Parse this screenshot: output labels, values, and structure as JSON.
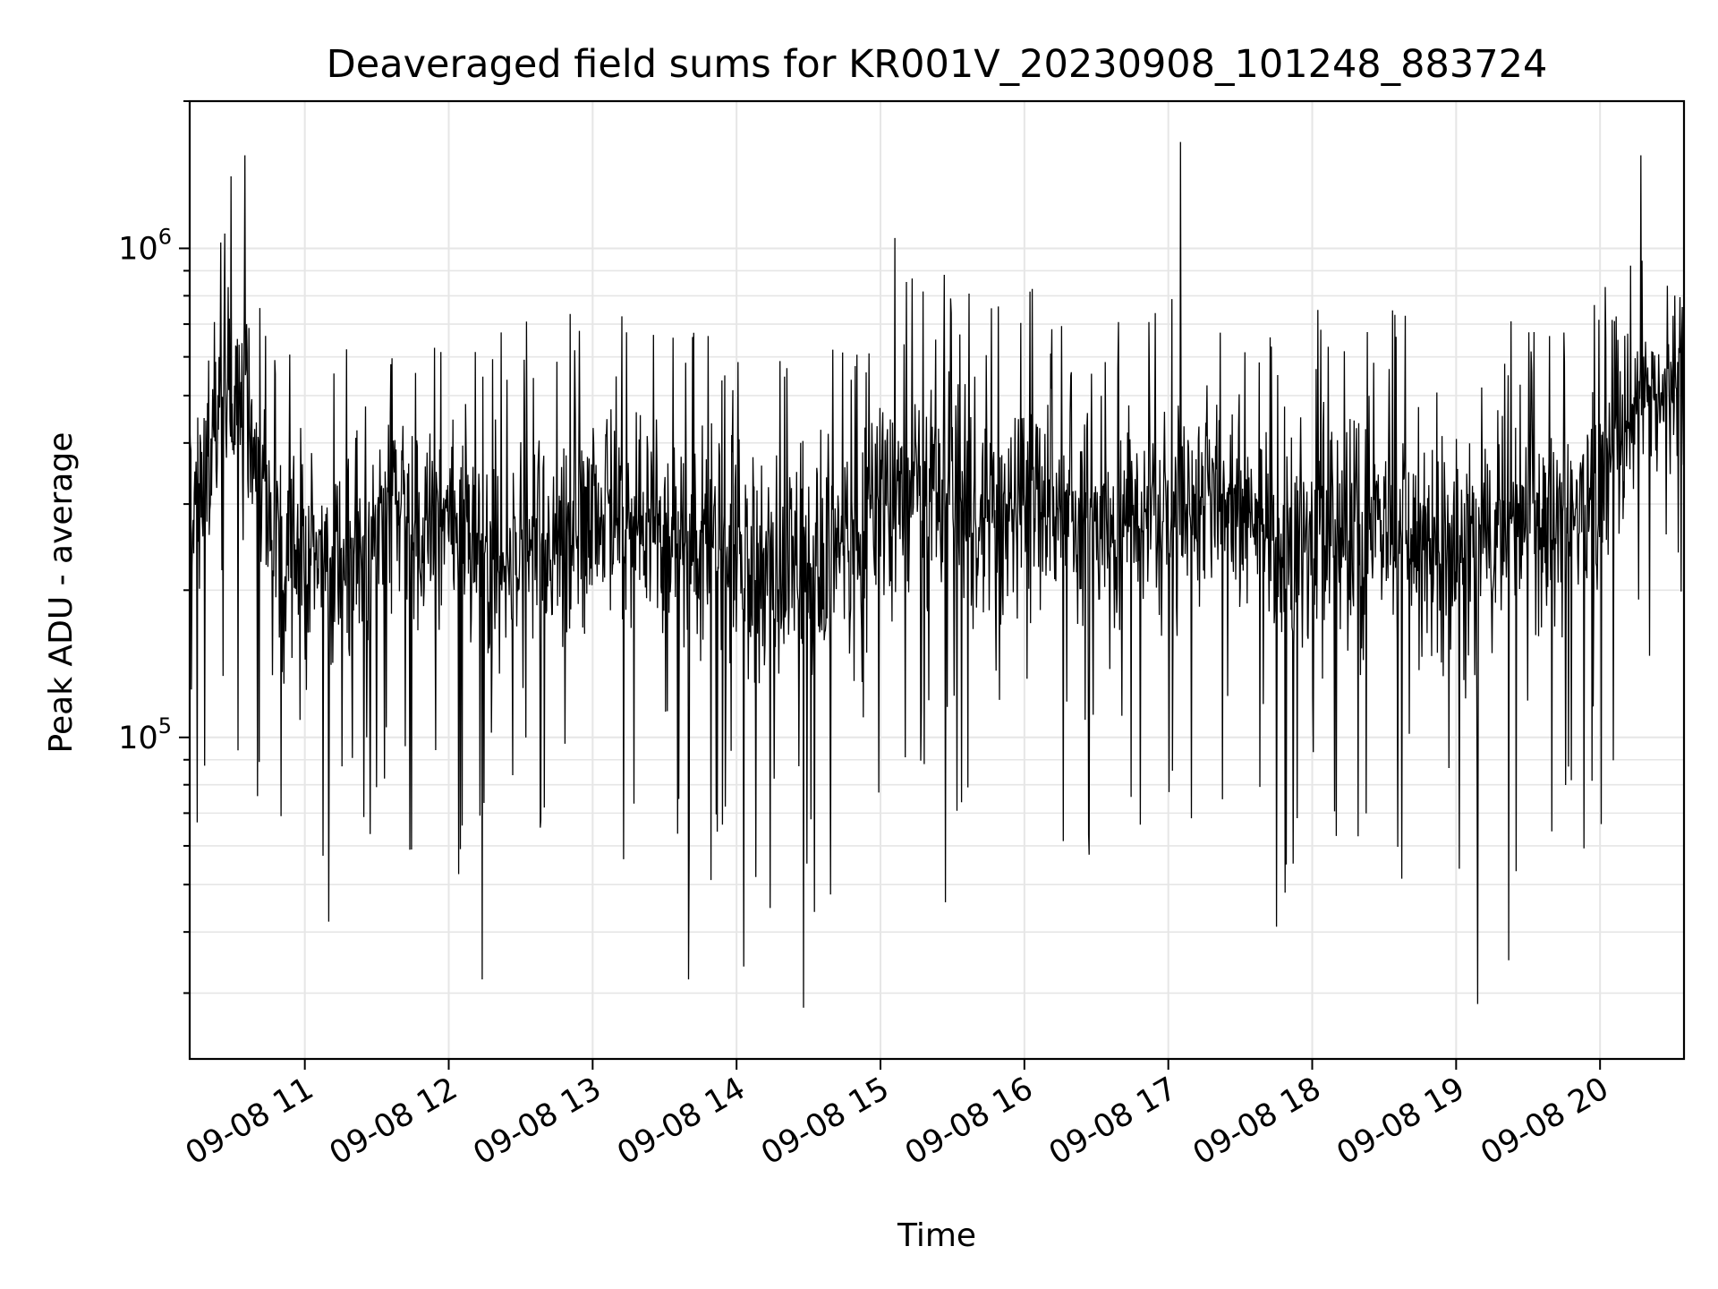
{
  "chart_data": {
    "type": "line",
    "title": "Deaveraged field sums for KR001V_20230908_101248_883724",
    "xlabel": "Time",
    "ylabel": "Peak ADU - average",
    "yscale": "log",
    "ylim": [
      22000,
      2000000
    ],
    "xlim": [
      "2023-09-08 10:12",
      "2023-09-08 20:35"
    ],
    "grid": true,
    "legend": "none",
    "colors": {
      "line": "#000000",
      "grid": "#e6e6e6",
      "frame": "#000000"
    },
    "x_ticks": [
      {
        "value": "2023-09-08 11:00",
        "label": "09-08 11"
      },
      {
        "value": "2023-09-08 12:00",
        "label": "09-08 12"
      },
      {
        "value": "2023-09-08 13:00",
        "label": "09-08 13"
      },
      {
        "value": "2023-09-08 14:00",
        "label": "09-08 14"
      },
      {
        "value": "2023-09-08 15:00",
        "label": "09-08 15"
      },
      {
        "value": "2023-09-08 16:00",
        "label": "09-08 16"
      },
      {
        "value": "2023-09-08 17:00",
        "label": "09-08 17"
      },
      {
        "value": "2023-09-08 18:00",
        "label": "09-08 18"
      },
      {
        "value": "2023-09-08 19:00",
        "label": "09-08 19"
      },
      {
        "value": "2023-09-08 20:00",
        "label": "09-08 20"
      }
    ],
    "y_ticks": [
      {
        "value": 100000,
        "base": "10",
        "exp": "5"
      },
      {
        "value": 1000000,
        "base": "10",
        "exp": "6"
      }
    ],
    "series": [
      {
        "x": [
          "2023-09-08 10:12",
          "2023-09-08 10:30",
          "2023-09-08 10:40",
          "2023-09-08 10:50",
          "2023-09-08 11:00",
          "2023-09-08 11:15",
          "2023-09-08 11:30",
          "2023-09-08 11:45",
          "2023-09-08 12:00",
          "2023-09-08 12:15",
          "2023-09-08 12:30",
          "2023-09-08 12:45",
          "2023-09-08 13:00",
          "2023-09-08 13:15",
          "2023-09-08 13:30",
          "2023-09-08 13:45",
          "2023-09-08 14:00",
          "2023-09-08 14:15",
          "2023-09-08 14:30",
          "2023-09-08 14:45",
          "2023-09-08 15:00",
          "2023-09-08 15:15",
          "2023-09-08 15:30",
          "2023-09-08 15:45",
          "2023-09-08 16:00",
          "2023-09-08 16:15",
          "2023-09-08 16:30",
          "2023-09-08 16:45",
          "2023-09-08 17:00",
          "2023-09-08 17:15",
          "2023-09-08 17:30",
          "2023-09-08 17:45",
          "2023-09-08 18:00",
          "2023-09-08 18:15",
          "2023-09-08 18:30",
          "2023-09-08 18:45",
          "2023-09-08 19:00",
          "2023-09-08 19:15",
          "2023-09-08 19:30",
          "2023-09-08 19:45",
          "2023-09-08 20:00",
          "2023-09-08 20:15",
          "2023-09-08 20:35"
        ],
        "y": [
          300000,
          560000,
          380000,
          250000,
          240000,
          230000,
          270000,
          280000,
          260000,
          240000,
          250000,
          260000,
          280000,
          270000,
          280000,
          250000,
          230000,
          230000,
          220000,
          240000,
          300000,
          330000,
          320000,
          290000,
          310000,
          280000,
          270000,
          260000,
          300000,
          320000,
          300000,
          250000,
          270000,
          280000,
          270000,
          260000,
          240000,
          250000,
          270000,
          280000,
          300000,
          500000,
          520000
        ],
        "band_low": [
          150000,
          180000,
          180000,
          140000,
          130000,
          120000,
          130000,
          140000,
          130000,
          110000,
          120000,
          130000,
          150000,
          130000,
          140000,
          120000,
          110000,
          110000,
          100000,
          120000,
          150000,
          170000,
          160000,
          140000,
          150000,
          130000,
          130000,
          120000,
          150000,
          160000,
          150000,
          110000,
          130000,
          140000,
          130000,
          120000,
          110000,
          120000,
          130000,
          140000,
          150000,
          300000,
          320000
        ],
        "band_high": [
          560000,
          1050000,
          700000,
          500000,
          480000,
          460000,
          520000,
          540000,
          520000,
          470000,
          500000,
          520000,
          540000,
          520000,
          540000,
          500000,
          460000,
          460000,
          450000,
          480000,
          600000,
          640000,
          620000,
          570000,
          600000,
          560000,
          540000,
          520000,
          580000,
          620000,
          600000,
          500000,
          540000,
          560000,
          540000,
          520000,
          480000,
          500000,
          540000,
          560000,
          600000,
          760000,
          720000
        ],
        "extremes": [
          {
            "x": "2023-09-08 10:15",
            "y": 67000
          },
          {
            "x": "2023-09-08 10:35",
            "y": 1550000
          },
          {
            "x": "2023-09-08 11:10",
            "y": 42000
          },
          {
            "x": "2023-09-08 12:14",
            "y": 32000
          },
          {
            "x": "2023-09-08 13:40",
            "y": 32000
          },
          {
            "x": "2023-09-08 14:03",
            "y": 34000
          },
          {
            "x": "2023-09-08 14:28",
            "y": 28000
          },
          {
            "x": "2023-09-08 15:06",
            "y": 1050000
          },
          {
            "x": "2023-09-08 15:27",
            "y": 46000
          },
          {
            "x": "2023-09-08 17:05",
            "y": 1650000
          },
          {
            "x": "2023-09-08 17:45",
            "y": 41000
          },
          {
            "x": "2023-09-08 19:09",
            "y": 28500
          },
          {
            "x": "2023-09-08 19:22",
            "y": 35000
          },
          {
            "x": "2023-09-08 20:17",
            "y": 1550000
          }
        ]
      }
    ]
  }
}
